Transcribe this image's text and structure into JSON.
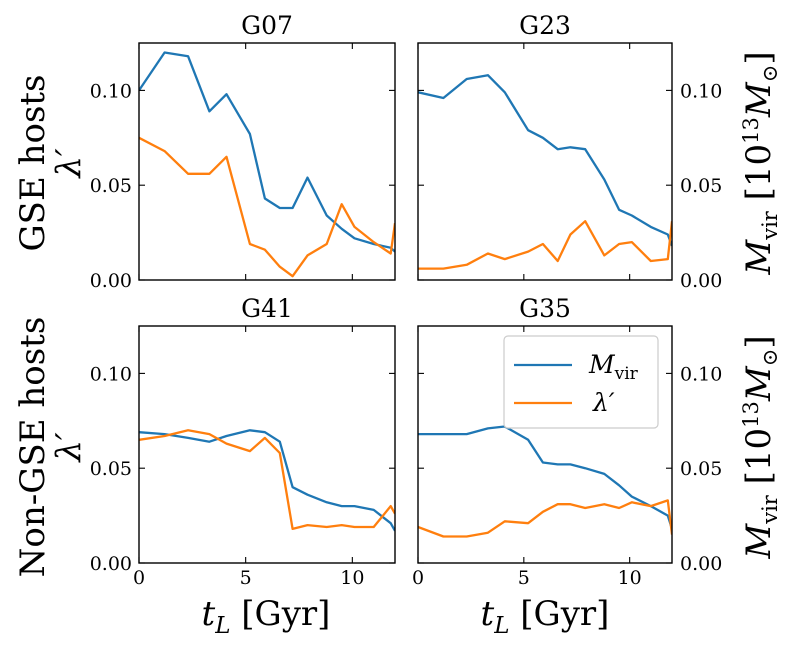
{
  "chart_data": {
    "type": "line",
    "x": [
      0.0,
      1.2,
      2.3,
      3.3,
      4.1,
      5.2,
      5.9,
      6.6,
      7.2,
      7.9,
      8.8,
      9.5,
      10.1,
      11.0,
      11.8,
      12.0
    ],
    "x_axis": {
      "label_italic": "t",
      "label_sub": "L",
      "label_unit": "[Gyr]",
      "xlim": [
        0,
        12
      ],
      "ticks": [
        0,
        5,
        10
      ],
      "tick_labels": [
        "0",
        "5",
        "10"
      ]
    },
    "left_axis": {
      "label": "λ′",
      "ylim": [
        0,
        0.125
      ],
      "ticks": [
        0.0,
        0.05,
        0.1
      ],
      "tick_labels": [
        "0.00",
        "0.05",
        "0.10"
      ]
    },
    "right_axis": {
      "label": "M",
      "label_sub": "vir",
      "label_unit": "[10",
      "label_exp": "13",
      "label_unit_tail": "M",
      "label_sun": "⊙",
      "label_close": "]",
      "ylim": [
        0,
        0.125
      ],
      "ticks": [
        0.0,
        0.05,
        0.1
      ],
      "tick_labels": [
        "0.00",
        "0.05",
        "0.10"
      ]
    },
    "row_labels": [
      "GSE hosts",
      "Non-GSE hosts"
    ],
    "row_label_symbol": "λ′",
    "legend": [
      {
        "label": "M",
        "sub": "vir",
        "color": "#1f77b4"
      },
      {
        "label": "λ′",
        "sub": "",
        "color": "#ff7f0e"
      }
    ],
    "colors": {
      "m_vir": "#1f77b4",
      "lambda": "#ff7f0e"
    },
    "panels": [
      {
        "title": "G07",
        "series": [
          {
            "name": "M_vir",
            "values": [
              0.1,
              0.12,
              0.118,
              0.089,
              0.098,
              0.077,
              0.043,
              0.038,
              0.038,
              0.054,
              0.034,
              0.027,
              0.022,
              0.019,
              0.017,
              0.015
            ]
          },
          {
            "name": "λ′",
            "values": [
              0.075,
              0.068,
              0.056,
              0.056,
              0.065,
              0.019,
              0.016,
              0.007,
              0.002,
              0.013,
              0.019,
              0.04,
              0.028,
              0.02,
              0.014,
              0.03
            ]
          }
        ]
      },
      {
        "title": "G23",
        "series": [
          {
            "name": "M_vir",
            "values": [
              0.099,
              0.096,
              0.106,
              0.108,
              0.099,
              0.079,
              0.075,
              0.069,
              0.07,
              0.069,
              0.053,
              0.037,
              0.034,
              0.028,
              0.024,
              0.018
            ]
          },
          {
            "name": "λ′",
            "values": [
              0.006,
              0.006,
              0.008,
              0.014,
              0.011,
              0.015,
              0.019,
              0.01,
              0.024,
              0.031,
              0.013,
              0.019,
              0.02,
              0.01,
              0.011,
              0.031
            ]
          }
        ]
      },
      {
        "title": "G41",
        "series": [
          {
            "name": "M_vir",
            "values": [
              0.069,
              0.068,
              0.066,
              0.064,
              0.067,
              0.07,
              0.069,
              0.064,
              0.04,
              0.036,
              0.032,
              0.03,
              0.03,
              0.028,
              0.021,
              0.017
            ]
          },
          {
            "name": "λ′",
            "values": [
              0.065,
              0.067,
              0.07,
              0.068,
              0.063,
              0.059,
              0.066,
              0.058,
              0.018,
              0.02,
              0.019,
              0.02,
              0.019,
              0.019,
              0.03,
              0.026
            ]
          }
        ]
      },
      {
        "title": "G35",
        "series": [
          {
            "name": "M_vir",
            "values": [
              0.068,
              0.068,
              0.068,
              0.071,
              0.072,
              0.065,
              0.053,
              0.052,
              0.052,
              0.05,
              0.047,
              0.041,
              0.035,
              0.03,
              0.025,
              0.018
            ]
          },
          {
            "name": "λ′",
            "values": [
              0.019,
              0.014,
              0.014,
              0.016,
              0.022,
              0.021,
              0.027,
              0.031,
              0.031,
              0.029,
              0.031,
              0.029,
              0.032,
              0.03,
              0.033,
              0.015
            ]
          }
        ]
      }
    ]
  }
}
